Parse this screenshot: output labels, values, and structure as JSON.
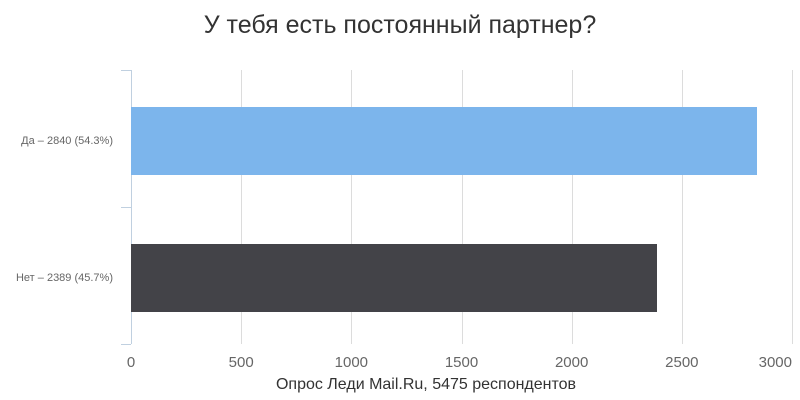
{
  "chart": {
    "title": "У тебя есть постоянный партнер?",
    "caption": "Опрос Леди Mail.Ru, 5475 респондентов"
  },
  "chart_data": {
    "type": "bar",
    "orientation": "horizontal",
    "title": "У тебя есть постоянный партнер?",
    "categories": [
      "Да",
      "Нет"
    ],
    "category_labels": [
      "Да – 2840 (54.3%)",
      "Нет – 2389 (45.7%)"
    ],
    "values": [
      2840,
      2389
    ],
    "percents": [
      "54.3%",
      "45.7%"
    ],
    "total_respondents": 5475,
    "xlabel": "Опрос Леди Mail.Ru, 5475 респондентов",
    "ylabel": "",
    "xlim": [
      0,
      3000
    ],
    "xticks": [
      0,
      500,
      1000,
      1500,
      2000,
      2500,
      3000
    ],
    "grid": true,
    "legend": false,
    "bar_colors": [
      "#7cb5ec",
      "#434348"
    ],
    "colors": {
      "title": "#333333",
      "axis_labels": "#666666",
      "gridline": "#dcdcdc",
      "axis_line": "#c0d0e0",
      "background": "#ffffff"
    }
  }
}
